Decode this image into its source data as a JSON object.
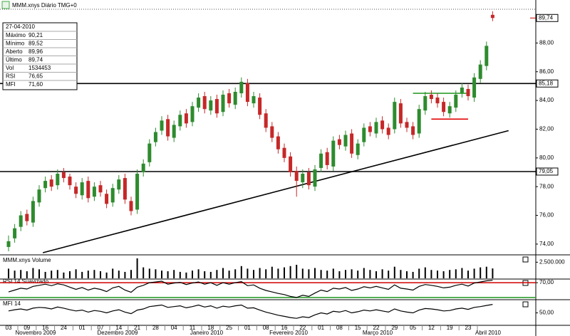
{
  "chart_data": [
    {
      "type": "candlestick",
      "title": "MMM.xnys Diário TMG+0",
      "categories": [
        "03",
        null,
        null,
        "09",
        null,
        null,
        "16",
        null,
        null,
        "24",
        null,
        null,
        "01",
        null,
        null,
        "07",
        null,
        null,
        "14",
        null,
        null,
        "21",
        null,
        null,
        "28",
        null,
        null,
        "04",
        null,
        null,
        "11",
        null,
        null,
        "18",
        null,
        null,
        "25",
        null,
        null,
        "01",
        null,
        null,
        "08",
        null,
        null,
        "16",
        null,
        null,
        "22",
        null,
        null,
        "01",
        null,
        null,
        "08",
        null,
        null,
        "15",
        null,
        null,
        "22",
        null,
        null,
        "29",
        null,
        null,
        "05",
        null,
        null,
        "12",
        null,
        null,
        "19",
        null,
        null,
        "23",
        null,
        null,
        null,
        null
      ],
      "month_labels": [
        "Novembro 2009",
        "Dezembro 2009",
        "Janeiro 2010",
        "Fevereiro 2010",
        "Março 2010",
        "Abril 2010"
      ],
      "open": [
        73.8,
        74.4,
        75.2,
        76.1,
        75.5,
        76.9,
        77.9,
        78.5,
        78.1,
        79.0,
        78.7,
        78.0,
        77.4,
        78.4,
        77.3,
        78.1,
        77.5,
        76.9,
        77.8,
        78.6,
        77.0,
        76.4,
        79.0,
        79.7,
        81.1,
        81.9,
        82.7,
        81.4,
        82.2,
        83.1,
        82.5,
        83.5,
        84.3,
        83.3,
        84.1,
        83.2,
        84.5,
        83.7,
        84.5,
        85.2,
        83.8,
        84.2,
        83.1,
        82.2,
        81.5,
        80.7,
        80.1,
        79.1,
        78.3,
        79.0,
        78.0,
        79.3,
        80.4,
        79.4,
        81.3,
        80.8,
        81.7,
        80.2,
        81.1,
        82.2,
        81.7,
        82.6,
        82.1,
        82.0,
        83.8,
        82.5,
        82.2,
        81.7,
        83.3,
        84.4,
        84.2,
        83.9,
        83.1,
        83.5,
        84.5,
        84.8,
        84.2,
        85.5,
        86.4,
        89.96
      ],
      "high": [
        74.6,
        75.4,
        76.3,
        76.4,
        77.3,
        78.1,
        78.7,
        78.8,
        79.2,
        79.3,
        78.9,
        78.3,
        78.6,
        78.7,
        78.3,
        78.4,
        77.8,
        78.2,
        78.8,
        78.9,
        77.3,
        79.2,
        79.9,
        81.3,
        82.1,
        82.9,
        83.0,
        82.6,
        83.3,
        83.4,
        83.9,
        84.5,
        84.6,
        84.3,
        84.4,
        84.7,
        84.8,
        84.9,
        85.6,
        85.5,
        84.6,
        84.5,
        83.4,
        82.5,
        81.8,
        81.0,
        80.4,
        79.4,
        79.2,
        79.3,
        79.5,
        80.6,
        80.7,
        81.5,
        81.6,
        81.9,
        82.0,
        81.3,
        82.4,
        82.5,
        82.8,
        82.9,
        82.4,
        84.2,
        84.1,
        82.8,
        82.5,
        83.7,
        84.6,
        84.7,
        84.5,
        84.2,
        83.9,
        84.7,
        85.2,
        85.1,
        85.9,
        86.8,
        88.1,
        90.21
      ],
      "low": [
        73.5,
        74.1,
        74.9,
        75.3,
        75.2,
        76.6,
        77.6,
        77.7,
        77.8,
        78.3,
        77.8,
        77.2,
        77.1,
        76.9,
        77.0,
        77.3,
        76.5,
        76.6,
        77.5,
        76.8,
        76.0,
        76.1,
        78.7,
        79.4,
        80.8,
        81.6,
        81.2,
        81.1,
        81.9,
        82.1,
        82.2,
        83.2,
        83.1,
        83.0,
        82.8,
        82.9,
        83.5,
        83.4,
        84.2,
        83.6,
        83.5,
        82.7,
        81.8,
        81.1,
        80.3,
        79.7,
        78.7,
        77.3,
        77.9,
        77.8,
        77.7,
        79.0,
        79.2,
        79.1,
        80.6,
        80.5,
        80.0,
        79.9,
        80.8,
        81.5,
        81.4,
        81.7,
        81.3,
        81.7,
        82.1,
        81.8,
        81.3,
        81.4,
        83.0,
        83.8,
        83.5,
        82.9,
        82.8,
        83.2,
        84.2,
        84.0,
        83.9,
        85.2,
        86.1,
        89.52
      ],
      "close": [
        74.2,
        75.1,
        76.0,
        75.6,
        77.0,
        77.8,
        78.4,
        78.0,
        78.9,
        78.6,
        78.1,
        77.5,
        78.3,
        77.2,
        78.0,
        77.6,
        76.8,
        77.9,
        78.5,
        77.1,
        76.3,
        78.9,
        79.6,
        81.0,
        81.8,
        82.6,
        81.5,
        82.3,
        83.0,
        82.4,
        83.6,
        84.2,
        83.4,
        84.0,
        83.1,
        84.4,
        83.8,
        84.6,
        85.3,
        83.9,
        84.3,
        83.0,
        82.1,
        81.4,
        80.6,
        80.0,
        79.0,
        78.4,
        78.9,
        78.1,
        79.2,
        80.3,
        79.5,
        81.2,
        80.9,
        81.6,
        80.3,
        81.0,
        82.1,
        81.8,
        82.5,
        82.0,
        81.6,
        83.9,
        82.4,
        82.1,
        81.6,
        83.4,
        84.3,
        84.1,
        83.8,
        83.2,
        83.6,
        84.4,
        84.9,
        84.3,
        85.6,
        86.5,
        87.8,
        89.74
      ],
      "up_color": "#2e8b2e",
      "down_color": "#c62828",
      "ylim": [
        73.4,
        90.2
      ],
      "yticks": [
        {
          "value": 74,
          "label": "74,00"
        },
        {
          "value": 76,
          "label": "76,00"
        },
        {
          "value": 78,
          "label": "78,00"
        },
        {
          "value": 80,
          "label": "80,00"
        },
        {
          "value": 82,
          "label": "82,00"
        },
        {
          "value": 84,
          "label": "84,00"
        },
        {
          "value": 86,
          "label": "86,00"
        },
        {
          "value": 88,
          "label": "88,00"
        }
      ],
      "levels": [
        {
          "value": 85.18,
          "label": "85,18"
        },
        {
          "value": 79.05,
          "label": "79,05"
        }
      ],
      "last_price": {
        "value": 89.74,
        "label": "89,74"
      },
      "trend_lines": [
        {
          "x": [
            5.6,
            81.6
          ],
          "y": [
            73.4,
            81.9
          ],
          "color": "#000000"
        },
        {
          "x": [
            66,
            75
          ],
          "y": [
            84.5,
            84.5
          ],
          "color": "#2e9e2e"
        },
        {
          "x": [
            69,
            75
          ],
          "y": [
            82.7,
            82.7
          ],
          "color": "#e00000"
        }
      ],
      "info_box": {
        "date": "27-04-2010",
        "rows": [
          [
            "Máximo",
            "90,21"
          ],
          [
            "Mínimo",
            "89,52"
          ],
          [
            "Aberto",
            "89,96"
          ],
          [
            "Último",
            "89,74"
          ],
          [
            "Vol",
            "1534453"
          ],
          [
            "RSI",
            "76,65"
          ],
          [
            "MFI",
            "71,60"
          ]
        ]
      }
    },
    {
      "type": "bar",
      "title": "MMM.xnys Volume",
      "color": "#000000",
      "values": [
        1500000,
        1200000,
        1300000,
        1100000,
        1600000,
        1400000,
        1000000,
        1200000,
        1300000,
        900000,
        1100000,
        1400000,
        1000000,
        1200000,
        1300000,
        1100000,
        900000,
        1500000,
        1200000,
        1000000,
        1300000,
        3100000,
        1700000,
        1500000,
        1400000,
        1200000,
        1100000,
        1300000,
        1000000,
        900000,
        1200000,
        1400000,
        1100000,
        1000000,
        1300000,
        1600000,
        1200000,
        1400000,
        1900000,
        1500000,
        1300000,
        1600000,
        1400000,
        1800000,
        1500000,
        1700000,
        1900000,
        2100000,
        1500000,
        1400000,
        1600000,
        1300000,
        1200000,
        1500000,
        1100000,
        1300000,
        1400000,
        1200000,
        1600000,
        1300000,
        1100000,
        1400000,
        1200000,
        1800000,
        1300000,
        1100000,
        1000000,
        1500000,
        1700000,
        1300000,
        1200000,
        1100000,
        1300000,
        1400000,
        1600000,
        1200000,
        1500000,
        1700000,
        1800000,
        1534453
      ],
      "ylim": [
        0,
        3200000
      ],
      "yticks": [
        {
          "value": 2500000,
          "label": "2.500.000"
        }
      ]
    },
    {
      "type": "line",
      "title": "RSI 14 Suavizado",
      "color": "#000000",
      "values": [
        45,
        50,
        55,
        53,
        60,
        63,
        66,
        62,
        67,
        64,
        58,
        52,
        57,
        50,
        55,
        52,
        46,
        56,
        60,
        50,
        44,
        58,
        63,
        70,
        72,
        74,
        66,
        69,
        71,
        65,
        69,
        72,
        66,
        70,
        63,
        70,
        66,
        70,
        73,
        62,
        64,
        55,
        49,
        45,
        41,
        38,
        33,
        30,
        36,
        33,
        42,
        50,
        46,
        55,
        53,
        57,
        49,
        53,
        59,
        56,
        60,
        56,
        52,
        64,
        55,
        53,
        50,
        60,
        65,
        63,
        60,
        56,
        58,
        63,
        66,
        61,
        69,
        72,
        75,
        76.65
      ],
      "ylim": [
        26,
        76
      ],
      "yticks": [
        {
          "value": 70,
          "label": "70,00"
        }
      ],
      "levels": [
        {
          "value": 70,
          "color": "#d00000"
        },
        {
          "value": 30,
          "color": "#2e9e2e"
        }
      ]
    },
    {
      "type": "line",
      "title": "MFI 14",
      "color": "#000000",
      "values": [
        55,
        58,
        60,
        57,
        62,
        64,
        63,
        60,
        65,
        62,
        58,
        55,
        57,
        52,
        56,
        54,
        50,
        55,
        58,
        52,
        48,
        57,
        60,
        66,
        68,
        70,
        64,
        66,
        68,
        63,
        66,
        70,
        65,
        68,
        62,
        67,
        65,
        68,
        70,
        62,
        63,
        57,
        52,
        48,
        44,
        41,
        38,
        36,
        40,
        38,
        45,
        50,
        47,
        54,
        52,
        56,
        50,
        53,
        57,
        55,
        58,
        55,
        52,
        60,
        55,
        52,
        50,
        57,
        61,
        60,
        58,
        55,
        56,
        60,
        62,
        59,
        64,
        66,
        69,
        71.6
      ],
      "ylim": [
        20,
        80
      ],
      "yticks": [
        {
          "value": 50,
          "label": "50,00"
        }
      ]
    }
  ]
}
